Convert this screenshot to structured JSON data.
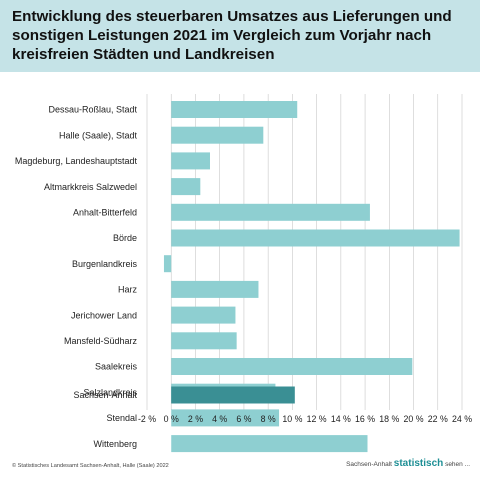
{
  "header": {
    "title": "Entwicklung des steuerbaren Umsatzes aus Lieferungen und sonstigen Leistungen 2021 im Vergleich zum Vorjahr nach kreisfreien Städten und Landkreisen"
  },
  "footer": {
    "copyright": "© Statistisches Landesamt Sachsen-Anhalt, Halle (Saale) 2022",
    "brand_prefix": "Sachsen-Anhalt",
    "brand_strong": "statistisch",
    "brand_suffix": "sehen ..."
  },
  "colors": {
    "bar": "#8ecfd1",
    "total_bar": "#3a8f94",
    "grid": "#c8c8c8",
    "title_band": "#c5e3e7"
  },
  "chart_data": {
    "type": "bar",
    "orientation": "horizontal",
    "categories": [
      "Dessau-Roßlau, Stadt",
      "Halle (Saale), Stadt",
      "Magdeburg, Landeshauptstadt",
      "Altmarkkreis Salzwedel",
      "Anhalt-Bitterfeld",
      "Börde",
      "Burgenlandkreis",
      "Harz",
      "Jerichower Land",
      "Mansfeld-Südharz",
      "Saalekreis",
      "Salzlandkreis",
      "Stendal",
      "Wittenberg"
    ],
    "values": [
      10.4,
      7.6,
      3.2,
      2.4,
      16.4,
      23.8,
      -0.6,
      7.2,
      5.3,
      5.4,
      19.9,
      8.6,
      8.9,
      16.2
    ],
    "total": {
      "category": "Sachsen-Anhalt",
      "value": 10.2
    },
    "xlim": [
      -2,
      24
    ],
    "xticks": [
      -2,
      0,
      2,
      4,
      6,
      8,
      10,
      12,
      14,
      16,
      18,
      20,
      22,
      24
    ],
    "tick_suffix": " %",
    "grid": true
  }
}
